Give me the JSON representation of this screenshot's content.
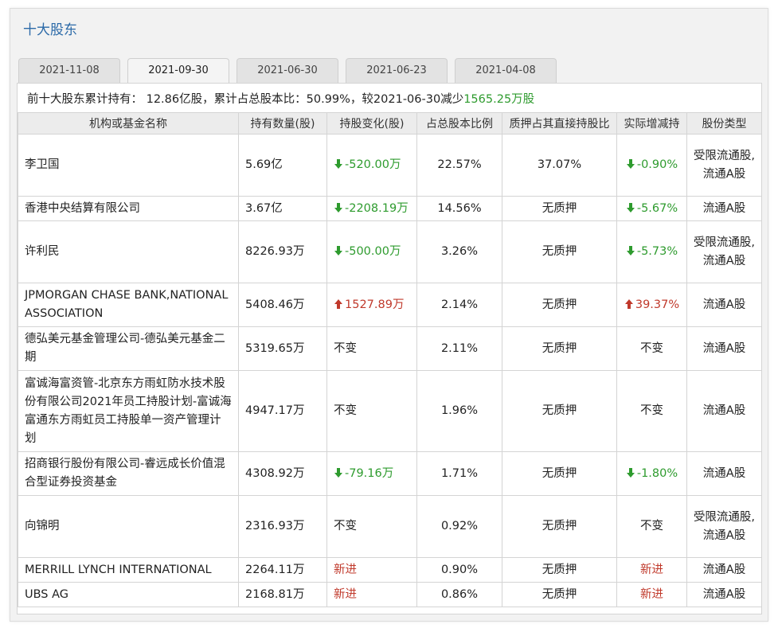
{
  "section_title": "十大股东",
  "tabs": [
    {
      "label": "2021-11-08",
      "active": false
    },
    {
      "label": "2021-09-30",
      "active": true
    },
    {
      "label": "2021-06-30",
      "active": false
    },
    {
      "label": "2021-06-23",
      "active": false
    },
    {
      "label": "2021-04-08",
      "active": false
    }
  ],
  "summary": {
    "prefix": "前十大股东累计持有：",
    "total_holding": "12.86亿股",
    "ratio_label": "，累计占总股本比：",
    "ratio": "50.99%",
    "compare_label": "，较2021-06-30减少",
    "change": "1565.25万股"
  },
  "table": {
    "headers": [
      "机构或基金名称",
      "持有数量(股)",
      "持股变化(股)",
      "占总股本比例",
      "质押占其直接持股比",
      "实际增减持",
      "股份类型"
    ],
    "rows": [
      {
        "name": "李卫国",
        "qty": "5.69亿",
        "change": "-520.00万",
        "change_dir": "down",
        "ratio": "22.57%",
        "pledge": "37.07%",
        "actual": "-0.90%",
        "actual_dir": "down",
        "type": "受限流通股,流通A股"
      },
      {
        "name": "香港中央结算有限公司",
        "qty": "3.67亿",
        "change": "-2208.19万",
        "change_dir": "down",
        "ratio": "14.56%",
        "pledge": "无质押",
        "actual": "-5.67%",
        "actual_dir": "down",
        "type": "流通A股"
      },
      {
        "name": "许利民",
        "qty": "8226.93万",
        "change": "-500.00万",
        "change_dir": "down",
        "ratio": "3.26%",
        "pledge": "无质押",
        "actual": "-5.73%",
        "actual_dir": "down",
        "type": "受限流通股,流通A股"
      },
      {
        "name": "JPMORGAN CHASE BANK,NATIONAL ASSOCIATION",
        "qty": "5408.46万",
        "change": "1527.89万",
        "change_dir": "up",
        "ratio": "2.14%",
        "pledge": "无质押",
        "actual": "39.37%",
        "actual_dir": "up",
        "type": "流通A股"
      },
      {
        "name": "德弘美元基金管理公司-德弘美元基金二期",
        "qty": "5319.65万",
        "change": "不变",
        "change_dir": "none",
        "ratio": "2.11%",
        "pledge": "无质押",
        "actual": "不变",
        "actual_dir": "none",
        "type": "流通A股"
      },
      {
        "name": "富诚海富资管-北京东方雨虹防水技术股份有限公司2021年员工持股计划-富诚海富通东方雨虹员工持股单一资产管理计划",
        "qty": "4947.17万",
        "change": "不变",
        "change_dir": "none",
        "ratio": "1.96%",
        "pledge": "无质押",
        "actual": "不变",
        "actual_dir": "none",
        "type": "流通A股"
      },
      {
        "name": "招商银行股份有限公司-睿远成长价值混合型证券投资基金",
        "qty": "4308.92万",
        "change": "-79.16万",
        "change_dir": "down",
        "ratio": "1.71%",
        "pledge": "无质押",
        "actual": "-1.80%",
        "actual_dir": "down",
        "type": "流通A股"
      },
      {
        "name": "向锦明",
        "qty": "2316.93万",
        "change": "不变",
        "change_dir": "none",
        "ratio": "0.92%",
        "pledge": "无质押",
        "actual": "不变",
        "actual_dir": "none",
        "type": "受限流通股,流通A股"
      },
      {
        "name": "MERRILL LYNCH INTERNATIONAL",
        "qty": "2264.11万",
        "change": "新进",
        "change_dir": "new",
        "ratio": "0.90%",
        "pledge": "无质押",
        "actual": "新进",
        "actual_dir": "new",
        "type": "流通A股"
      },
      {
        "name": "UBS AG",
        "qty": "2168.81万",
        "change": "新进",
        "change_dir": "new",
        "ratio": "0.86%",
        "pledge": "无质押",
        "actual": "新进",
        "actual_dir": "new",
        "type": "流通A股"
      }
    ]
  },
  "colors": {
    "title": "#2c6aa8",
    "decrease": "#2e9b2e",
    "increase": "#c0392b",
    "new": "#c0392b"
  }
}
